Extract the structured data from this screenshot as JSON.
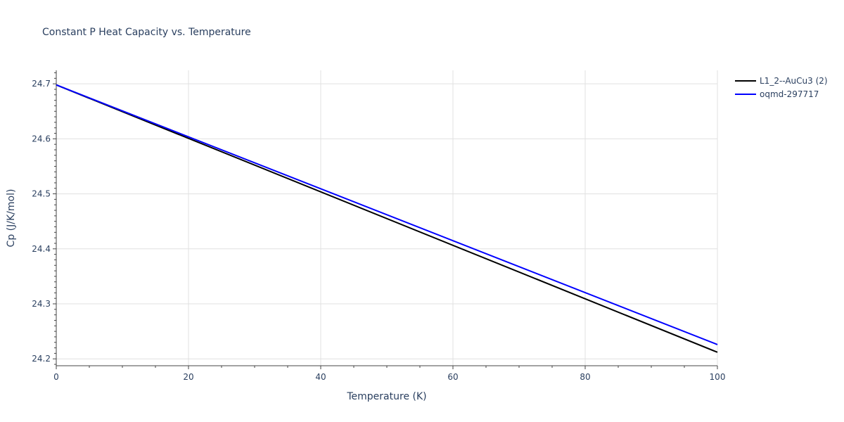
{
  "chart_data": {
    "type": "line",
    "title": "Constant P Heat Capacity vs. Temperature",
    "xlabel": "Temperature (K)",
    "ylabel": "Cp (J/K/mol)",
    "xlim": [
      0,
      100
    ],
    "ylim": [
      24.1875,
      24.7245
    ],
    "x_ticks": [
      0,
      20,
      40,
      60,
      80,
      100
    ],
    "x_tick_labels": [
      "0",
      "20",
      "40",
      "60",
      "80",
      "100"
    ],
    "y_ticks": [
      24.2,
      24.3,
      24.4,
      24.5,
      24.6,
      24.7
    ],
    "y_tick_labels": [
      "24.2",
      "24.3",
      "24.4",
      "24.5",
      "24.6",
      "24.7"
    ],
    "grid": true,
    "legend_position": "top-right",
    "series": [
      {
        "name": "L1_2--AuCu3 (2)",
        "color": "#000000",
        "x": [
          0,
          100
        ],
        "y": [
          24.698,
          24.212
        ]
      },
      {
        "name": "oqmd-297717",
        "color": "#0000ff",
        "x": [
          0,
          100
        ],
        "y": [
          24.698,
          24.226
        ]
      }
    ]
  }
}
